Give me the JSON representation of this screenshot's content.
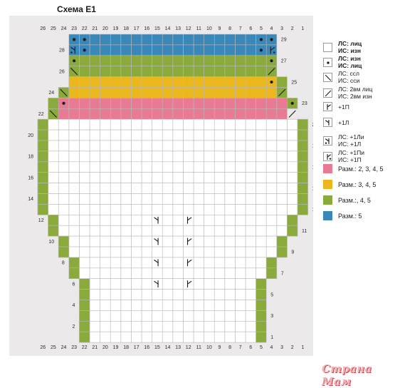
{
  "title": "Схема E1",
  "colors": {
    "background_panel": "#ece9ea",
    "grid_line": "#b9b9b9",
    "cell": "#ffffff",
    "pink": "#e97a94",
    "yellow": "#eab71c",
    "green": "#8aab3b",
    "blue": "#3a87b9"
  },
  "columns": [
    "26",
    "25",
    "24",
    "23",
    "22",
    "21",
    "20",
    "19",
    "18",
    "17",
    "16",
    "15",
    "14",
    "13",
    "12",
    "11",
    "10",
    "9",
    "8",
    "7",
    "6",
    "5",
    "4",
    "3",
    "2",
    "1"
  ],
  "rows_left": [
    {
      "row": 28,
      "label": "28"
    },
    {
      "row": 26,
      "label": "26"
    },
    {
      "row": 24,
      "label": "24"
    },
    {
      "row": 22,
      "label": "22"
    },
    {
      "row": 20,
      "label": "20"
    },
    {
      "row": 18,
      "label": "18"
    },
    {
      "row": 16,
      "label": "16"
    },
    {
      "row": 14,
      "label": "14"
    },
    {
      "row": 12,
      "label": "12"
    },
    {
      "row": 10,
      "label": "10"
    },
    {
      "row": 8,
      "label": "8"
    },
    {
      "row": 6,
      "label": "6"
    },
    {
      "row": 4,
      "label": "4"
    },
    {
      "row": 2,
      "label": "2"
    }
  ],
  "rows_right": [
    {
      "row": 29,
      "label": "29"
    },
    {
      "row": 27,
      "label": "27"
    },
    {
      "row": 25,
      "label": "25"
    },
    {
      "row": 23,
      "label": "23"
    },
    {
      "row": 21,
      "label": "21"
    },
    {
      "row": 19,
      "label": "19"
    },
    {
      "row": 17,
      "label": "17"
    },
    {
      "row": 15,
      "label": "15"
    },
    {
      "row": 13,
      "label": "13"
    },
    {
      "row": 11,
      "label": "11"
    },
    {
      "row": 9,
      "label": "9"
    },
    {
      "row": 7,
      "label": "7"
    },
    {
      "row": 5,
      "label": "5"
    },
    {
      "row": 3,
      "label": "3"
    },
    {
      "row": 1,
      "label": "1"
    }
  ],
  "chart_rows": [
    {
      "row": 29,
      "color": "blue",
      "from": 4,
      "to": 23
    },
    {
      "row": 28,
      "color": "blue",
      "from": 4,
      "to": 23
    },
    {
      "row": 27,
      "color": "green",
      "from": 4,
      "to": 23
    },
    {
      "row": 26,
      "color": "green",
      "from": 4,
      "to": 23
    },
    {
      "row": 25,
      "color": "yellow",
      "from": 4,
      "to": 23
    },
    {
      "row": 24,
      "color": "yellow",
      "from": 4,
      "to": 23
    },
    {
      "row": 23,
      "color": "pink",
      "from": 3,
      "to": 24
    },
    {
      "row": 22,
      "color": "pink",
      "from": 3,
      "to": 24
    },
    {
      "row": 21,
      "color": "white",
      "from": 1,
      "to": 26
    },
    {
      "row": 20,
      "color": "white",
      "from": 1,
      "to": 26
    },
    {
      "row": 19,
      "color": "white",
      "from": 1,
      "to": 26
    },
    {
      "row": 18,
      "color": "white",
      "from": 1,
      "to": 26
    },
    {
      "row": 17,
      "color": "white",
      "from": 1,
      "to": 26
    },
    {
      "row": 16,
      "color": "white",
      "from": 1,
      "to": 26
    },
    {
      "row": 15,
      "color": "white",
      "from": 1,
      "to": 26
    },
    {
      "row": 14,
      "color": "white",
      "from": 1,
      "to": 26
    },
    {
      "row": 13,
      "color": "white",
      "from": 1,
      "to": 26
    },
    {
      "row": 12,
      "color": "white",
      "from": 2,
      "to": 25
    },
    {
      "row": 11,
      "color": "white",
      "from": 2,
      "to": 25
    },
    {
      "row": 10,
      "color": "white",
      "from": 3,
      "to": 24
    },
    {
      "row": 9,
      "color": "white",
      "from": 3,
      "to": 24
    },
    {
      "row": 8,
      "color": "white",
      "from": 4,
      "to": 23
    },
    {
      "row": 7,
      "color": "white",
      "from": 4,
      "to": 23
    },
    {
      "row": 6,
      "color": "white",
      "from": 5,
      "to": 22
    },
    {
      "row": 5,
      "color": "white",
      "from": 5,
      "to": 22
    },
    {
      "row": 4,
      "color": "white",
      "from": 5,
      "to": 22
    },
    {
      "row": 3,
      "color": "white",
      "from": 5,
      "to": 22
    },
    {
      "row": 2,
      "color": "white",
      "from": 5,
      "to": 22
    },
    {
      "row": 1,
      "color": "white",
      "from": 5,
      "to": 22
    }
  ],
  "side_green_cells": [
    {
      "row": 24,
      "col": 24
    },
    {
      "row": 23,
      "col": 25
    },
    {
      "row": 22,
      "col": 25
    },
    {
      "row": 25,
      "col": 3
    },
    {
      "row": 24,
      "col": 3
    },
    {
      "row": 23,
      "col": 2
    },
    {
      "row": 21,
      "col": 1
    },
    {
      "row": 20,
      "col": 1
    },
    {
      "row": 19,
      "col": 1
    },
    {
      "row": 18,
      "col": 1
    },
    {
      "row": 17,
      "col": 1
    },
    {
      "row": 16,
      "col": 1
    },
    {
      "row": 15,
      "col": 1
    },
    {
      "row": 14,
      "col": 1
    },
    {
      "row": 13,
      "col": 1
    },
    {
      "row": 21,
      "col": 26
    },
    {
      "row": 20,
      "col": 26
    },
    {
      "row": 19,
      "col": 26
    },
    {
      "row": 18,
      "col": 26
    },
    {
      "row": 17,
      "col": 26
    },
    {
      "row": 16,
      "col": 26
    },
    {
      "row": 15,
      "col": 26
    },
    {
      "row": 14,
      "col": 26
    },
    {
      "row": 13,
      "col": 26
    },
    {
      "row": 12,
      "col": 2
    },
    {
      "row": 11,
      "col": 2
    },
    {
      "row": 12,
      "col": 25
    },
    {
      "row": 11,
      "col": 25
    },
    {
      "row": 10,
      "col": 3
    },
    {
      "row": 9,
      "col": 3
    },
    {
      "row": 10,
      "col": 24
    },
    {
      "row": 9,
      "col": 24
    },
    {
      "row": 8,
      "col": 4
    },
    {
      "row": 7,
      "col": 4
    },
    {
      "row": 8,
      "col": 23
    },
    {
      "row": 7,
      "col": 23
    },
    {
      "row": 6,
      "col": 5
    },
    {
      "row": 5,
      "col": 5
    },
    {
      "row": 4,
      "col": 5
    },
    {
      "row": 3,
      "col": 5
    },
    {
      "row": 2,
      "col": 5
    },
    {
      "row": 1,
      "col": 5
    },
    {
      "row": 6,
      "col": 22
    },
    {
      "row": 5,
      "col": 22
    },
    {
      "row": 4,
      "col": 22
    },
    {
      "row": 3,
      "col": 22
    },
    {
      "row": 2,
      "col": 22
    },
    {
      "row": 1,
      "col": 22
    }
  ],
  "symbols": [
    {
      "row": 29,
      "col": 23,
      "kind": "dot"
    },
    {
      "row": 29,
      "col": 22,
      "kind": "dot"
    },
    {
      "row": 29,
      "col": 5,
      "kind": "dot"
    },
    {
      "row": 29,
      "col": 4,
      "kind": "dot"
    },
    {
      "row": 28,
      "col": 23,
      "kind": "inc-left-purl"
    },
    {
      "row": 28,
      "col": 22,
      "kind": "dot"
    },
    {
      "row": 28,
      "col": 5,
      "kind": "dot"
    },
    {
      "row": 28,
      "col": 4,
      "kind": "inc-right-purl"
    },
    {
      "row": 27,
      "col": 23,
      "kind": "dot"
    },
    {
      "row": 27,
      "col": 4,
      "kind": "dot"
    },
    {
      "row": 26,
      "col": 23,
      "kind": "ssk"
    },
    {
      "row": 26,
      "col": 4,
      "kind": "k2tog"
    },
    {
      "row": 25,
      "col": 4,
      "kind": "dot"
    },
    {
      "row": 24,
      "col": 24,
      "kind": "ssk"
    },
    {
      "row": 24,
      "col": 3,
      "kind": "k2tog"
    },
    {
      "row": 23,
      "col": 24,
      "kind": "dot"
    },
    {
      "row": 23,
      "col": 2,
      "kind": "dot"
    },
    {
      "row": 22,
      "col": 25,
      "kind": "ssk"
    },
    {
      "row": 22,
      "col": 2,
      "kind": "k2tog"
    },
    {
      "row": 12,
      "col": 15,
      "kind": "inc-left"
    },
    {
      "row": 12,
      "col": 12,
      "kind": "inc-right"
    },
    {
      "row": 10,
      "col": 15,
      "kind": "inc-left"
    },
    {
      "row": 10,
      "col": 12,
      "kind": "inc-right"
    },
    {
      "row": 8,
      "col": 15,
      "kind": "inc-left"
    },
    {
      "row": 8,
      "col": 12,
      "kind": "inc-right"
    },
    {
      "row": 6,
      "col": 15,
      "kind": "inc-left"
    },
    {
      "row": 6,
      "col": 12,
      "kind": "inc-right"
    }
  ],
  "legend": [
    {
      "kind": "empty",
      "line1": "ЛС: лиц",
      "line2": "ИС: изн",
      "bold": true
    },
    {
      "kind": "dot",
      "line1": "ЛС: изн",
      "line2": "ИС: лиц",
      "bold": true
    },
    {
      "kind": "ssk",
      "line1": "ЛС: ссл",
      "line2": "ИС: сси",
      "bold": false
    },
    {
      "kind": "k2tog",
      "line1": "ЛС: 2вм лиц",
      "line2": "ИС: 2вм изн",
      "bold": false
    },
    {
      "kind": "inc-right",
      "line1": "+1П",
      "line2": "",
      "bold": false
    },
    {
      "kind": "inc-left",
      "line1": "+1Л",
      "line2": "",
      "bold": false
    },
    {
      "kind": "inc-left-purl",
      "line1": "ЛС: +1Ли",
      "line2": "ИС: +1Л",
      "bold": false
    },
    {
      "kind": "inc-right-purl",
      "line1": "ЛС: +1Пи",
      "line2": "ИС: +1П",
      "bold": false
    }
  ],
  "size_legend": [
    {
      "color": "pink",
      "label": "Разм.: 2, 3, 4, 5"
    },
    {
      "color": "yellow",
      "label": "Разм.: 3, 4, 5"
    },
    {
      "color": "green",
      "label": "Разм.:, 4, 5"
    },
    {
      "color": "blue",
      "label": "Разм.:  5"
    }
  ],
  "watermark": "Страна Мам"
}
